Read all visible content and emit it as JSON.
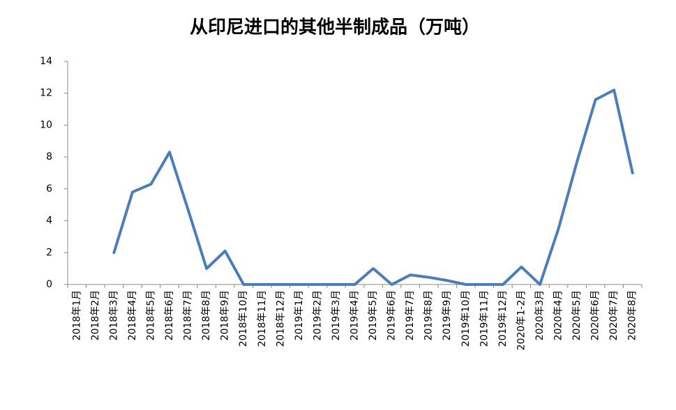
{
  "chart_data": {
    "type": "line",
    "title": "从印尼进口的其他半制成品（万吨）",
    "categories": [
      "2018年1月",
      "2018年2月",
      "2018年3月",
      "2018年4月",
      "2018年5月",
      "2018年6月",
      "2018年7月",
      "2018年8月",
      "2018年9月",
      "2018年10月",
      "2018年11月",
      "2018年12月",
      "2019年1月",
      "2019年2月",
      "2019年3月",
      "2019年4月",
      "2019年5月",
      "2019年6月",
      "2019年7月",
      "2019年8月",
      "2019年9月",
      "2019年10月",
      "2019年11月",
      "2019年12月",
      "2020年1-2月",
      "2020年3月",
      "2020年4月",
      "2020年5月",
      "2020年6月",
      "2020年7月",
      "2020年8月"
    ],
    "values": [
      null,
      null,
      2.0,
      5.8,
      6.3,
      8.3,
      4.7,
      1.0,
      2.1,
      0,
      0,
      0,
      0,
      0,
      0,
      0,
      1.0,
      0,
      0.6,
      0.45,
      0.25,
      0,
      0,
      0,
      1.1,
      0,
      3.5,
      7.7,
      11.6,
      12.2,
      7.0
    ],
    "color": "#4a7ebb",
    "ylim": [
      0,
      14
    ],
    "yticks": [
      0,
      2,
      4,
      6,
      8,
      10,
      12,
      14
    ],
    "grid": false
  }
}
